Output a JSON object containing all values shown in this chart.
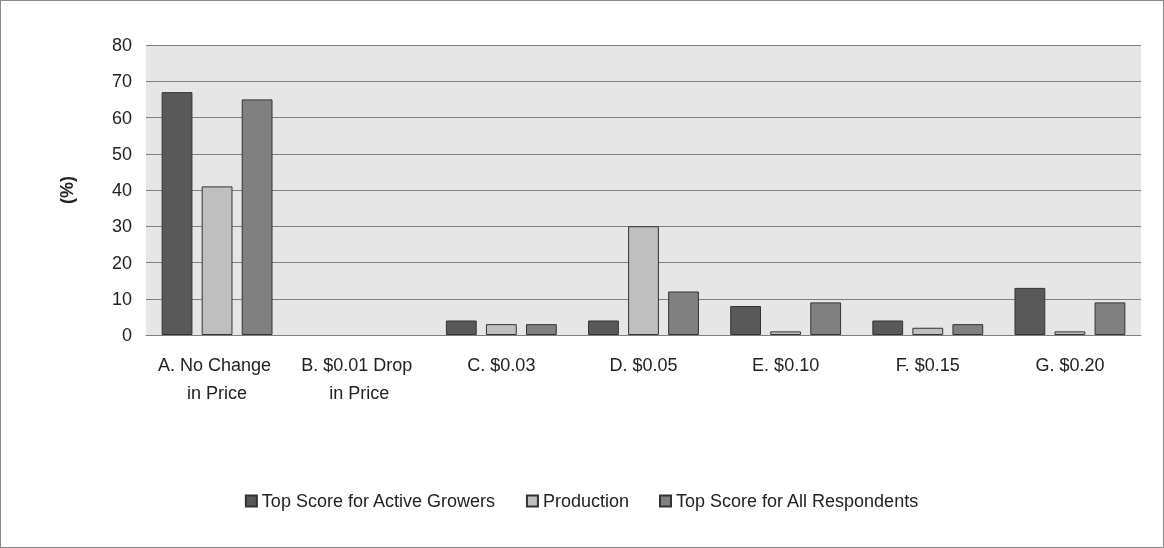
{
  "chart_data": {
    "type": "bar",
    "ylabel": "(%)",
    "categories": [
      "A. No Change in Price",
      "B. $0.01 Drop in Price",
      "C. $0.03",
      "D. $0.05",
      "E. $0.10",
      "F. $0.15",
      "G. $0.20"
    ],
    "series": [
      {
        "name": "Top Score for Active Growers",
        "color": "#595959",
        "values": [
          67,
          0,
          4,
          4,
          8,
          4,
          13
        ]
      },
      {
        "name": "Production",
        "color": "#bfbfbf",
        "values": [
          41,
          0,
          3,
          30,
          1,
          2,
          1
        ]
      },
      {
        "name": "Top Score for All Respondents",
        "color": "#808080",
        "values": [
          65,
          0,
          3,
          12,
          9,
          3,
          9
        ]
      }
    ],
    "ylim": [
      0,
      80
    ],
    "yticks": [
      0,
      10,
      20,
      30,
      40,
      50,
      60,
      70,
      80
    ],
    "grid": "y",
    "legend": "bottom"
  }
}
